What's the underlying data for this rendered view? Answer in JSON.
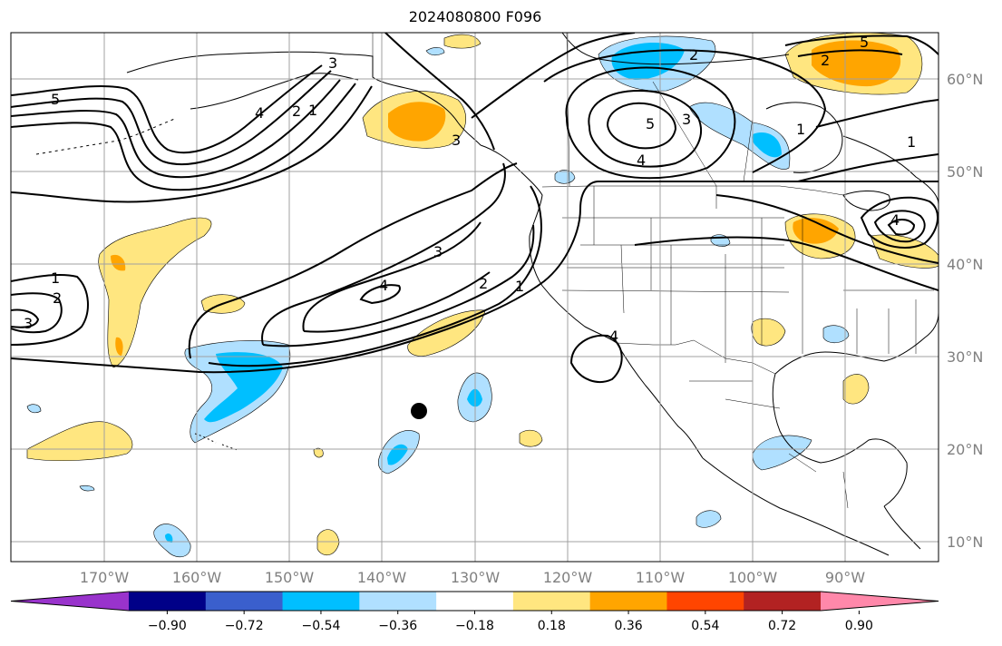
{
  "title": "2024080800 F096",
  "lat_labels": [
    "60°N",
    "50°N",
    "40°N",
    "30°N",
    "20°N",
    "10°N"
  ],
  "lon_labels": [
    "170°W",
    "160°W",
    "150°W",
    "140°W",
    "130°W",
    "120°W",
    "110°W",
    "100°W",
    "90°W"
  ],
  "colorbar": {
    "ticks": [
      "−0.90",
      "−0.72",
      "−0.54",
      "−0.36",
      "−0.18",
      "0.18",
      "0.36",
      "0.54",
      "0.72",
      "0.90"
    ],
    "colors": [
      "#9933cc",
      "#000088",
      "#3a5fcd",
      "#00bfff",
      "#b0e0ff",
      "#ffffff",
      "#ffe680",
      "#ffa500",
      "#ff4500",
      "#b22222",
      "#ff88aa"
    ]
  },
  "contour_labels": [
    "5",
    "4",
    "3",
    "2",
    "1",
    "1",
    "2",
    "3",
    "4",
    "5",
    "4",
    "3",
    "2",
    "1",
    "1",
    "2",
    "3",
    "4",
    "1",
    "2",
    "3",
    "5",
    "4"
  ],
  "marker": {
    "type": "filled-circle",
    "color": "#000000"
  },
  "colors": {
    "grid": "#a0a0a0",
    "coast": "#000000",
    "contour": "#000000",
    "pos_light": "#ffe680",
    "pos_mid": "#ffa500",
    "neg_light": "#b0e0ff",
    "neg_mid": "#00bfff"
  }
}
